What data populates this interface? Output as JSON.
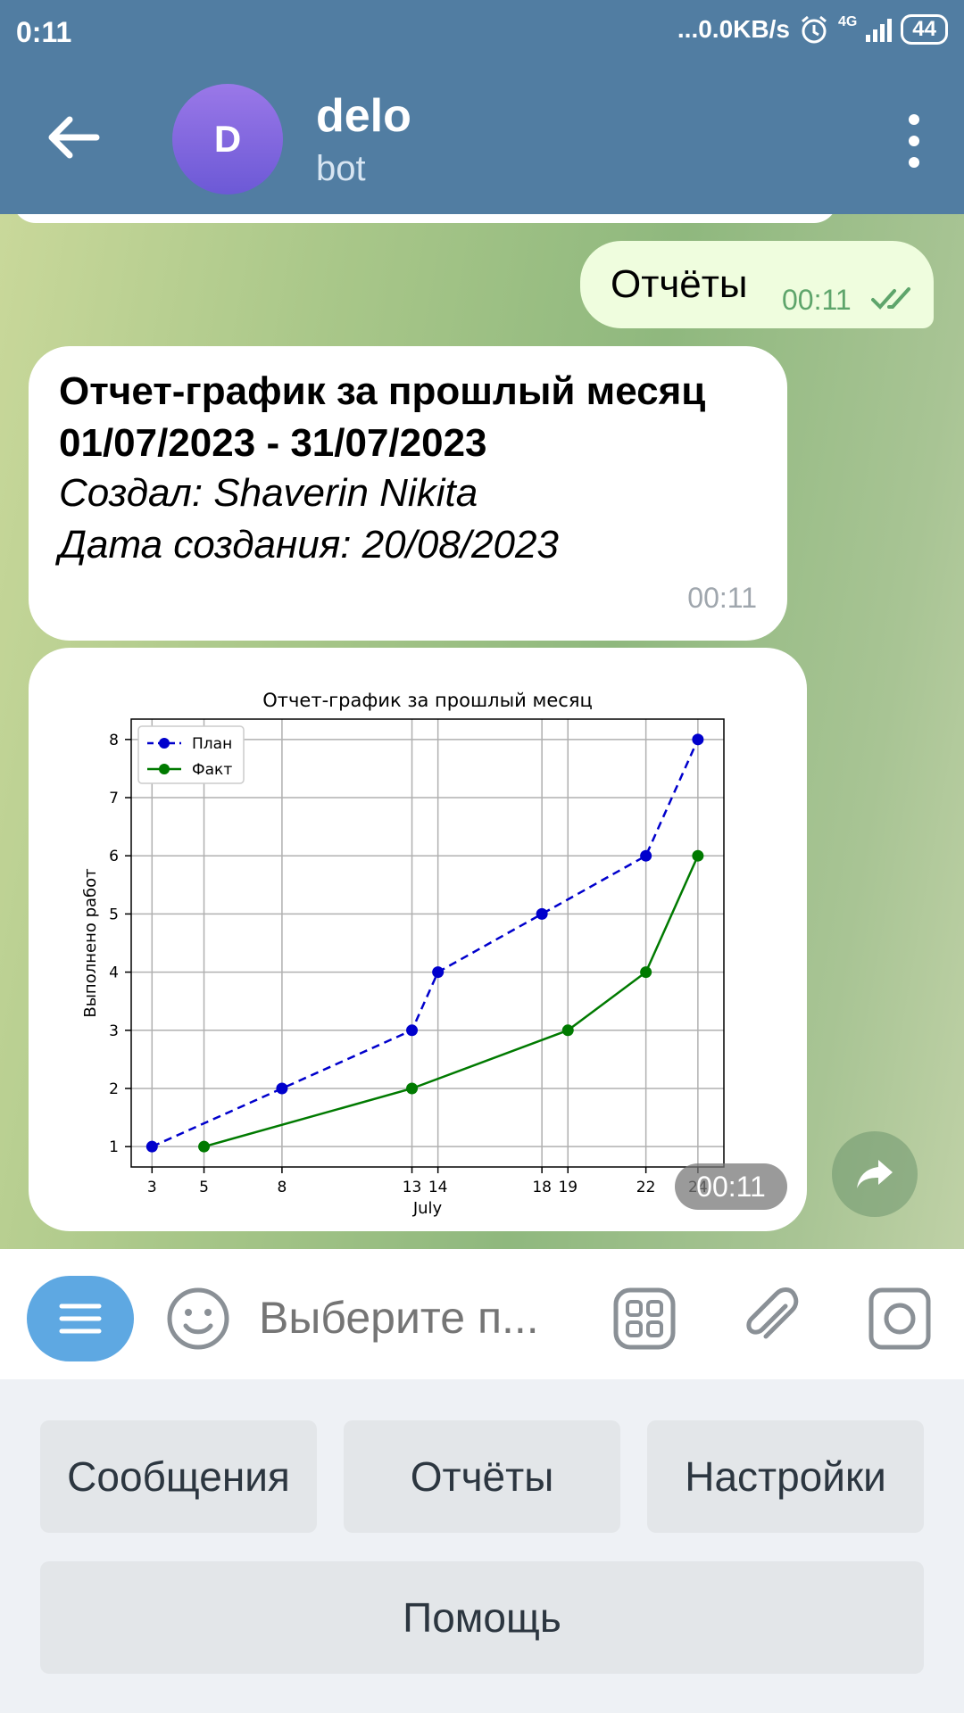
{
  "status": {
    "time": "0:11",
    "speed": "...0.0KB/s",
    "network": "4G",
    "battery": "44"
  },
  "header": {
    "avatar_letter": "D",
    "title": "delo",
    "subtitle": "bot"
  },
  "messages": {
    "outgoing": {
      "text": "Отчёты",
      "time": "00:11"
    },
    "incoming": {
      "title_line1": "Отчет-график за прошлый месяц",
      "title_line2": "01/07/2023 - 31/07/2023",
      "creator": "Создал: Shaverin Nikita",
      "created_date": "Дата создания: 20/08/2023",
      "time": "00:11"
    },
    "photo": {
      "time": "00:11"
    }
  },
  "chart_data": {
    "type": "line",
    "title": "Отчет-график за прошлый месяц",
    "xlabel": "July",
    "ylabel": "Выполнено работ",
    "xticks": [
      3,
      5,
      8,
      13,
      14,
      18,
      19,
      22,
      24
    ],
    "yticks": [
      1,
      2,
      3,
      4,
      5,
      6,
      7,
      8
    ],
    "xlim": [
      2.2,
      25.0
    ],
    "ylim": [
      0.65,
      8.35
    ],
    "grid": true,
    "legend_position": "top-left",
    "series": [
      {
        "name": "План",
        "color": "#0000cc",
        "style": "dashed",
        "x": [
          3,
          8,
          13,
          14,
          18,
          22,
          24
        ],
        "y": [
          1,
          2,
          3,
          4,
          5,
          6,
          8
        ]
      },
      {
        "name": "Факт",
        "color": "#007a00",
        "style": "solid",
        "x": [
          5,
          13,
          19,
          22,
          24
        ],
        "y": [
          1,
          2,
          3,
          4,
          6
        ]
      }
    ]
  },
  "input": {
    "placeholder": "Выберите п..."
  },
  "keyboard": {
    "row1": [
      "Сообщения",
      "Отчёты",
      "Настройки"
    ],
    "row2": [
      "Помощь"
    ]
  }
}
